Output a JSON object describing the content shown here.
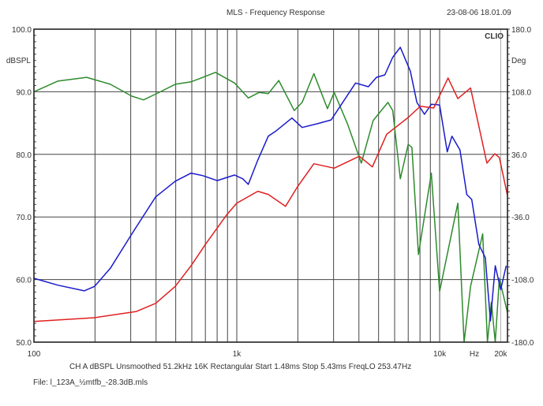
{
  "chart_data": {
    "type": "line",
    "title": "MLS - Frequency Response",
    "timestamp": "23-08-06 18.01.09",
    "logo": "CLIO",
    "xlabel": "Hz",
    "xscale": "log",
    "xlim": [
      100,
      21600
    ],
    "x_tick_labels": [
      {
        "value": 100,
        "label": "100"
      },
      {
        "value": 1000,
        "label": "1k"
      },
      {
        "value": 10000,
        "label": "10k"
      },
      {
        "value": 20000,
        "label": "20k"
      }
    ],
    "x_gridlines": [
      200,
      300,
      400,
      500,
      600,
      700,
      800,
      900,
      1000,
      2000,
      3000,
      4000,
      5000,
      6000,
      7000,
      8000,
      9000,
      10000,
      20000
    ],
    "ylabel_left": "dBSPL",
    "ylim_left": [
      50,
      100
    ],
    "y_ticks_left": [
      "100.0",
      "90.0",
      "80.0",
      "70.0",
      "60.0",
      "50.0"
    ],
    "ylabel_right": "Deg",
    "ylim_right": [
      -180,
      180
    ],
    "y_ticks_right": [
      "180.0",
      "108.0",
      "36.0",
      "-36.0",
      "-108.0",
      "-180.0"
    ],
    "grid": true,
    "cursor_hz": 20000,
    "series": [
      {
        "name": "green",
        "color": "#2e8b2e",
        "points": [
          [
            100,
            90.0
          ],
          [
            131,
            91.7
          ],
          [
            182,
            92.3
          ],
          [
            238,
            91.2
          ],
          [
            304,
            89.3
          ],
          [
            347,
            88.7
          ],
          [
            408,
            89.8
          ],
          [
            497,
            91.2
          ],
          [
            595,
            91.6
          ],
          [
            656,
            92.1
          ],
          [
            785,
            93.1
          ],
          [
            975,
            91.4
          ],
          [
            1140,
            89.0
          ],
          [
            1290,
            89.9
          ],
          [
            1430,
            89.7
          ],
          [
            1610,
            91.8
          ],
          [
            1920,
            87.0
          ],
          [
            2100,
            88.3
          ],
          [
            2400,
            92.9
          ],
          [
            2800,
            87.3
          ],
          [
            3020,
            89.9
          ],
          [
            3510,
            84.9
          ],
          [
            4110,
            78.6
          ],
          [
            4700,
            85.4
          ],
          [
            5560,
            88.3
          ],
          [
            5870,
            87.0
          ],
          [
            6400,
            76.1
          ],
          [
            7000,
            81.6
          ],
          [
            7300,
            81.1
          ],
          [
            7860,
            64.0
          ],
          [
            9100,
            77.0
          ],
          [
            10000,
            58.1
          ],
          [
            12300,
            72.2
          ],
          [
            13200,
            49.6
          ],
          [
            14200,
            58.9
          ],
          [
            16300,
            67.3
          ],
          [
            17200,
            49.6
          ],
          [
            18000,
            56.4
          ],
          [
            18800,
            49.6
          ],
          [
            19700,
            60.2
          ],
          [
            21600,
            54.7
          ]
        ]
      },
      {
        "name": "blue",
        "color": "#1a1acc",
        "points": [
          [
            100,
            60.2
          ],
          [
            131,
            59.1
          ],
          [
            177,
            58.2
          ],
          [
            199,
            58.9
          ],
          [
            238,
            61.8
          ],
          [
            304,
            67.3
          ],
          [
            398,
            73.2
          ],
          [
            497,
            75.7
          ],
          [
            595,
            77.0
          ],
          [
            680,
            76.6
          ],
          [
            800,
            75.8
          ],
          [
            975,
            76.7
          ],
          [
            1070,
            76.1
          ],
          [
            1140,
            75.2
          ],
          [
            1270,
            79.1
          ],
          [
            1430,
            82.9
          ],
          [
            1570,
            83.8
          ],
          [
            1870,
            85.8
          ],
          [
            2100,
            84.3
          ],
          [
            2500,
            84.9
          ],
          [
            2920,
            85.5
          ],
          [
            3850,
            91.4
          ],
          [
            4450,
            90.8
          ],
          [
            4880,
            92.3
          ],
          [
            5370,
            92.7
          ],
          [
            5870,
            95.5
          ],
          [
            6400,
            97.1
          ],
          [
            7170,
            93.3
          ],
          [
            7720,
            88.3
          ],
          [
            8420,
            86.4
          ],
          [
            9100,
            88.0
          ],
          [
            10000,
            87.9
          ],
          [
            10900,
            80.4
          ],
          [
            11500,
            82.9
          ],
          [
            12600,
            80.7
          ],
          [
            13600,
            73.6
          ],
          [
            14400,
            72.8
          ],
          [
            15600,
            65.6
          ],
          [
            16800,
            63.5
          ],
          [
            17800,
            53.4
          ],
          [
            18800,
            62.2
          ],
          [
            20000,
            58.4
          ],
          [
            21300,
            62.2
          ]
        ]
      },
      {
        "name": "red",
        "color": "#e02020",
        "points": [
          [
            100,
            53.3
          ],
          [
            199,
            53.9
          ],
          [
            320,
            54.9
          ],
          [
            398,
            56.2
          ],
          [
            497,
            58.9
          ],
          [
            595,
            62.2
          ],
          [
            700,
            65.6
          ],
          [
            890,
            70.3
          ],
          [
            1000,
            72.2
          ],
          [
            1270,
            74.1
          ],
          [
            1430,
            73.6
          ],
          [
            1740,
            71.7
          ],
          [
            1990,
            74.8
          ],
          [
            2400,
            78.5
          ],
          [
            3020,
            77.8
          ],
          [
            4020,
            79.7
          ],
          [
            4660,
            78.0
          ],
          [
            5480,
            83.2
          ],
          [
            7000,
            85.9
          ],
          [
            8040,
            87.7
          ],
          [
            9350,
            87.4
          ],
          [
            11000,
            92.2
          ],
          [
            12300,
            88.9
          ],
          [
            14200,
            90.6
          ],
          [
            17100,
            78.6
          ],
          [
            18700,
            80.1
          ],
          [
            19700,
            79.5
          ],
          [
            21600,
            73.4
          ]
        ]
      }
    ]
  },
  "footer": {
    "settings": "CH A   dBSPL   Unsmoothed   51.2kHz   16K   Rectangular   Start 1.48ms    Stop 5.43ms    FreqLO 253.47Hz",
    "file": "File: l_123A_½mtfb_-28.3dB.mls"
  }
}
